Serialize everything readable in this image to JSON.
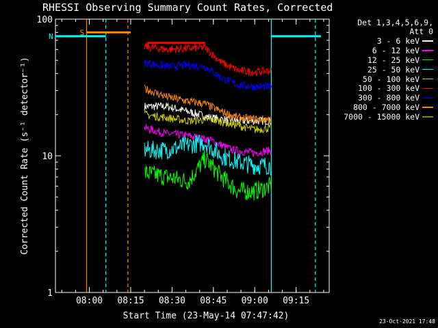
{
  "title": "RHESSI Observing Summary Count Rates, Corrected",
  "footer": "23-Oct-2021 17:48",
  "legend": {
    "header_line1": "Det 1,3,4,5,6,9,",
    "header_line2": "Att 0"
  },
  "chart_data": {
    "type": "line",
    "title": "RHESSI Observing Summary Count Rates, Corrected",
    "xlabel": "Start Time (23-May-14 07:47:42)",
    "ylabel": "Corrected Count Rate (s⁻¹ detector⁻¹)",
    "y_scale": "log",
    "ylim": [
      1,
      100
    ],
    "y_ticks": [
      1,
      10,
      100
    ],
    "xlim": [
      "07:47:42",
      "09:27:00"
    ],
    "x_ticks": [
      "08:00",
      "08:15",
      "08:30",
      "08:45",
      "09:00",
      "09:15"
    ],
    "grid": false,
    "legend_position": "right",
    "series": [
      {
        "name": "3 - 6 keV",
        "color": "#ffffff",
        "x": [
          "08:20",
          "08:28",
          "08:36",
          "08:44",
          "08:52",
          "09:00",
          "09:06"
        ],
        "y": [
          23,
          23,
          21,
          19,
          18,
          18,
          18
        ]
      },
      {
        "name": "6 - 12 keV",
        "color": "#ff00ff",
        "x": [
          "08:20",
          "08:28",
          "08:36",
          "08:44",
          "08:52",
          "09:00",
          "09:06"
        ],
        "y": [
          16,
          14.5,
          14,
          13,
          11,
          10.5,
          11
        ]
      },
      {
        "name": "12 - 25 keV",
        "color": "#00ff00",
        "x": [
          "08:20",
          "08:28",
          "08:36",
          "08:42",
          "08:48",
          "08:54",
          "09:00",
          "09:06"
        ],
        "y": [
          7.5,
          7,
          6.5,
          9.5,
          7,
          5.5,
          5.5,
          6
        ]
      },
      {
        "name": "25 - 50 keV",
        "color": "#00ffff",
        "x": [
          "08:20",
          "08:28",
          "08:36",
          "08:42",
          "08:48",
          "08:54",
          "09:00",
          "09:06"
        ],
        "y": [
          11,
          11,
          12,
          12.5,
          10,
          9,
          8.5,
          8.5
        ]
      },
      {
        "name": "50 - 100 keV",
        "color": "#cccc00",
        "x": [
          "08:20",
          "08:28",
          "08:36",
          "08:44",
          "08:52",
          "09:00",
          "09:06"
        ],
        "y": [
          20,
          19,
          18,
          18.5,
          17,
          15.5,
          16
        ]
      },
      {
        "name": "100 - 300 keV",
        "color": "#ff0000",
        "x": [
          "08:20",
          "08:28",
          "08:36",
          "08:42",
          "08:48",
          "08:54",
          "09:00",
          "09:06"
        ],
        "y": [
          63,
          60,
          61,
          62,
          48,
          42,
          41,
          42
        ]
      },
      {
        "name": "300 - 800 keV",
        "color": "#0000ff",
        "x": [
          "08:20",
          "08:28",
          "08:36",
          "08:42",
          "08:48",
          "08:54",
          "09:00",
          "09:06"
        ],
        "y": [
          48,
          45,
          46,
          45,
          37,
          33,
          32,
          32
        ]
      },
      {
        "name": "800 - 7000 keV",
        "color": "#ff8800",
        "x": [
          "08:20",
          "08:28",
          "08:36",
          "08:42",
          "08:48",
          "08:54",
          "09:00",
          "09:06"
        ],
        "y": [
          31,
          27,
          25,
          24,
          21,
          19,
          18.5,
          18.5
        ]
      },
      {
        "name": "7000 - 15000 keV",
        "color": "#888800",
        "x": [],
        "y": []
      }
    ],
    "annotations": {
      "flag_segments": [
        {
          "label": "S",
          "color": "#ff8800",
          "start": "07:59",
          "end": "08:15",
          "y": 80
        },
        {
          "label": "N",
          "color": "#00ffff",
          "start": "07:47:42",
          "end": "08:06",
          "y": 75
        },
        {
          "label": "",
          "color": "#00ffff",
          "start": "09:06",
          "end": "09:24",
          "y": 75
        },
        {
          "label": "",
          "color": "#ff0000",
          "start": "08:21",
          "end": "08:42",
          "y": 67
        }
      ],
      "vlines": [
        {
          "time": "07:59",
          "color": "#ff8800",
          "style": "solid"
        },
        {
          "time": "08:14",
          "color": "#ff8800",
          "style": "dashed"
        },
        {
          "time": "08:06",
          "color": "#00ffff",
          "style": "dashed"
        },
        {
          "time": "09:06",
          "color": "#00ffff",
          "style": "solid"
        },
        {
          "time": "09:22",
          "color": "#00ffff",
          "style": "dashed"
        }
      ]
    }
  }
}
